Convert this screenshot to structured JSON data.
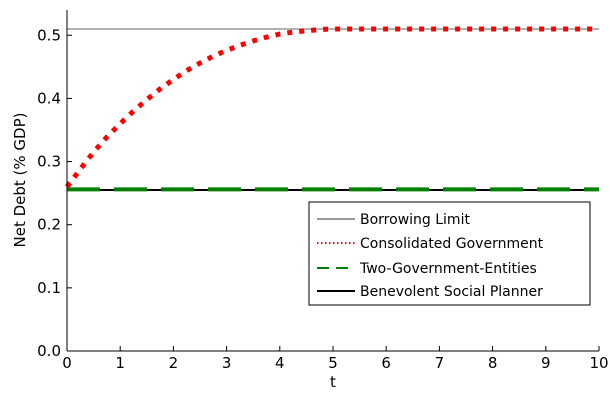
{
  "chart_data": {
    "type": "line",
    "xlabel": "t",
    "ylabel": "Net Debt (% GDP)",
    "xlim": [
      0,
      10
    ],
    "ylim": [
      0.0,
      0.54
    ],
    "xticks": [
      0,
      1,
      2,
      3,
      4,
      5,
      6,
      7,
      8,
      9,
      10
    ],
    "xtick_labels": [
      "0",
      "1",
      "2",
      "3",
      "4",
      "5",
      "6",
      "7",
      "8",
      "9",
      "10"
    ],
    "yticks": [
      0.0,
      0.1,
      0.2,
      0.3,
      0.4,
      0.5
    ],
    "ytick_labels": [
      "0.0",
      "0.1",
      "0.2",
      "0.3",
      "0.4",
      "0.5"
    ],
    "grid": false,
    "legend_position": "center-right",
    "series": [
      {
        "name": "Borrowing Limit",
        "color": "#999999",
        "style": "solid",
        "x": [
          0,
          10
        ],
        "y": [
          0.51,
          0.51
        ]
      },
      {
        "name": "Consolidated Government",
        "color": "#ff0000",
        "style": "dotted",
        "x": [
          0,
          0.25,
          0.5,
          0.75,
          1.0,
          1.25,
          1.5,
          1.75,
          2.0,
          2.25,
          2.5,
          2.75,
          3.0,
          3.25,
          3.5,
          3.75,
          4.0,
          4.25,
          4.5,
          4.75,
          5.0,
          5.5,
          6.0,
          6.5,
          7.0,
          7.5,
          8.0,
          8.5,
          9.0,
          9.5,
          10.0
        ],
        "y": [
          0.26,
          0.288,
          0.315,
          0.339,
          0.36,
          0.38,
          0.398,
          0.415,
          0.43,
          0.444,
          0.456,
          0.467,
          0.476,
          0.484,
          0.491,
          0.497,
          0.502,
          0.505,
          0.507,
          0.509,
          0.51,
          0.51,
          0.51,
          0.51,
          0.51,
          0.51,
          0.51,
          0.51,
          0.51,
          0.51,
          0.51
        ]
      },
      {
        "name": "Two-Government-Entities",
        "color": "#008000",
        "style": "dashed",
        "x": [
          0,
          10
        ],
        "y": [
          0.256,
          0.256
        ]
      },
      {
        "name": "Benevolent Social Planner",
        "color": "#000000",
        "style": "solid",
        "x": [
          0,
          10
        ],
        "y": [
          0.255,
          0.255
        ]
      }
    ]
  }
}
